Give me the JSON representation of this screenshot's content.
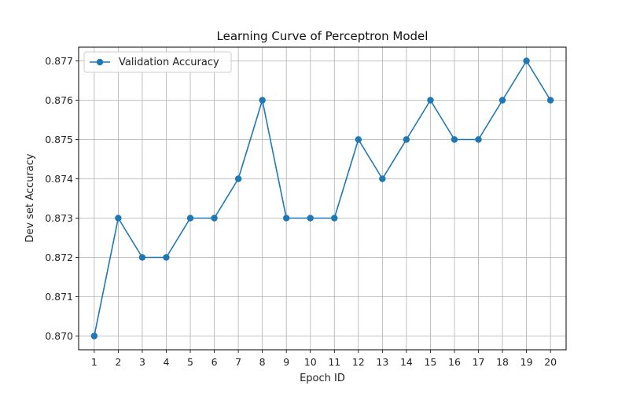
{
  "chart_data": {
    "type": "line",
    "title": "Learning Curve of Perceptron Model",
    "xlabel": "Epoch ID",
    "ylabel": "Dev set Accuracy",
    "x": [
      1,
      2,
      3,
      4,
      5,
      6,
      7,
      8,
      9,
      10,
      11,
      12,
      13,
      14,
      15,
      16,
      17,
      18,
      19,
      20
    ],
    "x_tick_labels": [
      "1",
      "2",
      "3",
      "4",
      "5",
      "6",
      "7",
      "8",
      "9",
      "10",
      "11",
      "12",
      "13",
      "14",
      "15",
      "16",
      "17",
      "18",
      "19",
      "20"
    ],
    "y_tick_values": [
      0.87,
      0.871,
      0.872,
      0.873,
      0.874,
      0.875,
      0.876,
      0.877
    ],
    "y_tick_labels": [
      "0.870",
      "0.871",
      "0.872",
      "0.873",
      "0.874",
      "0.875",
      "0.876",
      "0.877"
    ],
    "xlim": [
      0.35,
      20.65
    ],
    "ylim": [
      0.86965,
      0.87735
    ],
    "grid": true,
    "legend_position": "top-left",
    "series": [
      {
        "name": "Validation Accuracy",
        "color": "#1f77b4",
        "marker": "circle",
        "values": [
          0.87,
          0.873,
          0.872,
          0.872,
          0.873,
          0.873,
          0.874,
          0.876,
          0.873,
          0.873,
          0.873,
          0.875,
          0.874,
          0.875,
          0.876,
          0.875,
          0.875,
          0.876,
          0.877,
          0.876
        ]
      }
    ]
  }
}
